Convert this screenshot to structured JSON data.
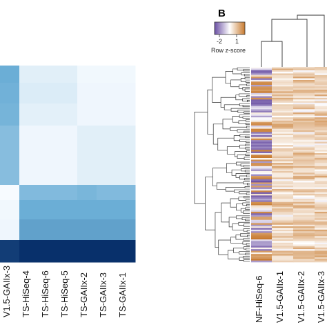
{
  "chart_data": [
    {
      "type": "heatmap",
      "panel": "A",
      "columns": [
        "V1.5-GAIIx-3",
        "TS-HiSeq-4",
        "TS-HiSeq-6",
        "TS-HiSeq-5",
        "TS-GAIIx-2",
        "TS-GAIIx-3",
        "TS-GAIIx-1"
      ],
      "values": [
        [
          0.5,
          0.08,
          0.08,
          0.08,
          0.02,
          0.02,
          0.02
        ],
        [
          0.48,
          0.1,
          0.1,
          0.1,
          0.03,
          0.03,
          0.03
        ],
        [
          0.46,
          0.07,
          0.07,
          0.07,
          0.03,
          0.03,
          0.03
        ],
        [
          0.4,
          0.03,
          0.03,
          0.03,
          0.08,
          0.08,
          0.08
        ],
        [
          0.0,
          0.42,
          0.42,
          0.42,
          0.45,
          0.42,
          0.42
        ],
        [
          0.02,
          0.5,
          0.5,
          0.5,
          0.5,
          0.5,
          0.5
        ],
        [
          0.03,
          0.55,
          0.55,
          0.55,
          0.55,
          0.55,
          0.55
        ],
        [
          0.95,
          1.0,
          1.0,
          1.0,
          1.0,
          1.0,
          1.0
        ]
      ],
      "grid": false,
      "legend": "none"
    },
    {
      "type": "heatmap",
      "panel": "B",
      "title": "B",
      "columns": [
        "NF-HiSeq-6",
        "V1.5-GAIIx-1",
        "V1.5-GAIIx-2",
        "V1.5-GAIIx-3"
      ],
      "color_key": {
        "ticks": [
          -2,
          1
        ],
        "label": "Row z-score",
        "low_color": "#6a4fa3",
        "mid_color": "#ffffff",
        "high_color": "#c87a2e"
      },
      "row_dendrogram": true,
      "column_dendrogram": true,
      "row_count": 120
    }
  ],
  "colors": {
    "blue_low": "#f7fbff",
    "blue_high": "#08306b",
    "purple": "#6a4fa3",
    "orange": "#c87a2e"
  }
}
